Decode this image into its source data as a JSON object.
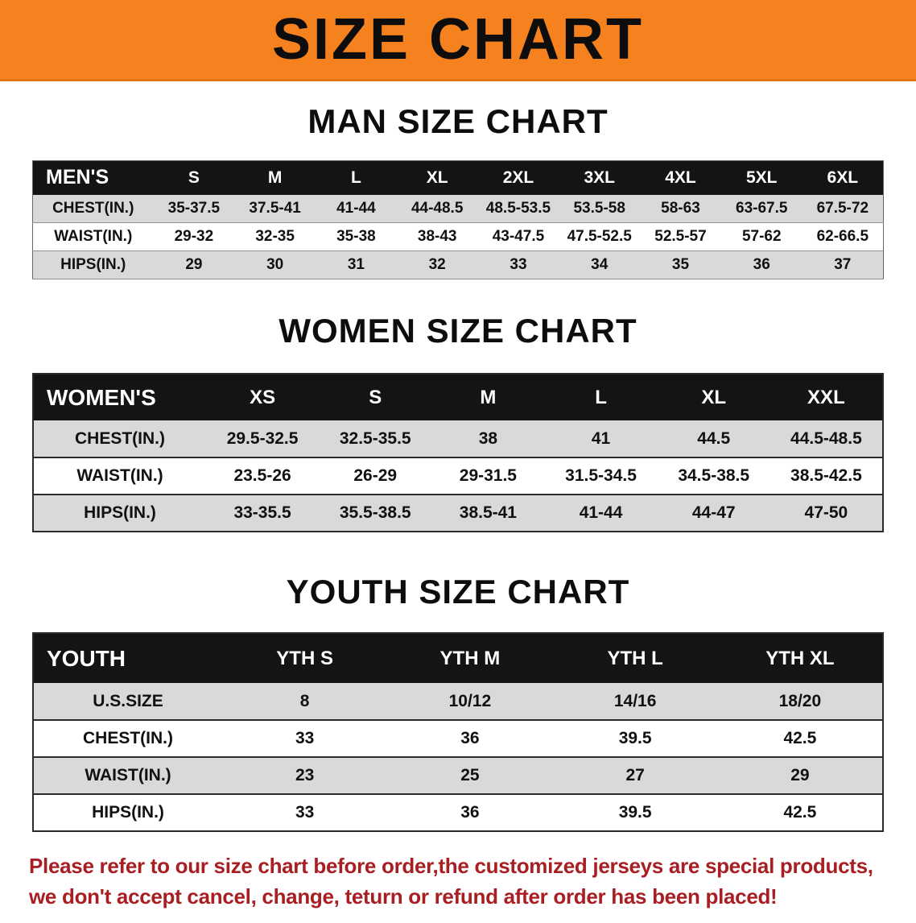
{
  "banner": {
    "title": "SIZE CHART"
  },
  "colors": {
    "banner_bg": "#f6821f",
    "header_bg": "#141414",
    "row_alt_bg": "#d9d9d9",
    "disclaimer_red": "#a81e22",
    "table_border": "#2a2a2a"
  },
  "sections": [
    {
      "id": "men",
      "heading": "MAN SIZE CHART",
      "table": {
        "header": [
          "MEN'S",
          "S",
          "M",
          "L",
          "XL",
          "2XL",
          "3XL",
          "4XL",
          "5XL",
          "6XL"
        ],
        "rows": [
          [
            "CHEST(IN.)",
            "35-37.5",
            "37.5-41",
            "41-44",
            "44-48.5",
            "48.5-53.5",
            "53.5-58",
            "58-63",
            "63-67.5",
            "67.5-72"
          ],
          [
            "WAIST(IN.)",
            "29-32",
            "32-35",
            "35-38",
            "38-43",
            "43-47.5",
            "47.5-52.5",
            "52.5-57",
            "57-62",
            "62-66.5"
          ],
          [
            "HIPS(IN.)",
            "29",
            "30",
            "31",
            "32",
            "33",
            "34",
            "35",
            "36",
            "37"
          ]
        ]
      }
    },
    {
      "id": "women",
      "heading": "WOMEN SIZE CHART",
      "table": {
        "header": [
          "WOMEN'S",
          "XS",
          "S",
          "M",
          "L",
          "XL",
          "XXL"
        ],
        "rows": [
          [
            "CHEST(IN.)",
            "29.5-32.5",
            "32.5-35.5",
            "38",
            "41",
            "44.5",
            "44.5-48.5"
          ],
          [
            "WAIST(IN.)",
            "23.5-26",
            "26-29",
            "29-31.5",
            "31.5-34.5",
            "34.5-38.5",
            "38.5-42.5"
          ],
          [
            "HIPS(IN.)",
            "33-35.5",
            "35.5-38.5",
            "38.5-41",
            "41-44",
            "44-47",
            "47-50"
          ]
        ]
      }
    },
    {
      "id": "youth",
      "heading": "YOUTH SIZE CHART",
      "table": {
        "header": [
          "YOUTH",
          "YTH S",
          "YTH M",
          "YTH L",
          "YTH XL"
        ],
        "rows": [
          [
            "U.S.SIZE",
            "8",
            "10/12",
            "14/16",
            "18/20"
          ],
          [
            "CHEST(IN.)",
            "33",
            "36",
            "39.5",
            "42.5"
          ],
          [
            "WAIST(IN.)",
            "23",
            "25",
            "27",
            "29"
          ],
          [
            "HIPS(IN.)",
            "33",
            "36",
            "39.5",
            "42.5"
          ]
        ]
      }
    }
  ],
  "disclaimer": {
    "line1": "Please refer to our size chart before order,the customized jerseys are special products,",
    "line2": "we don't accept cancel, change, teturn or refund after order has been placed!"
  }
}
